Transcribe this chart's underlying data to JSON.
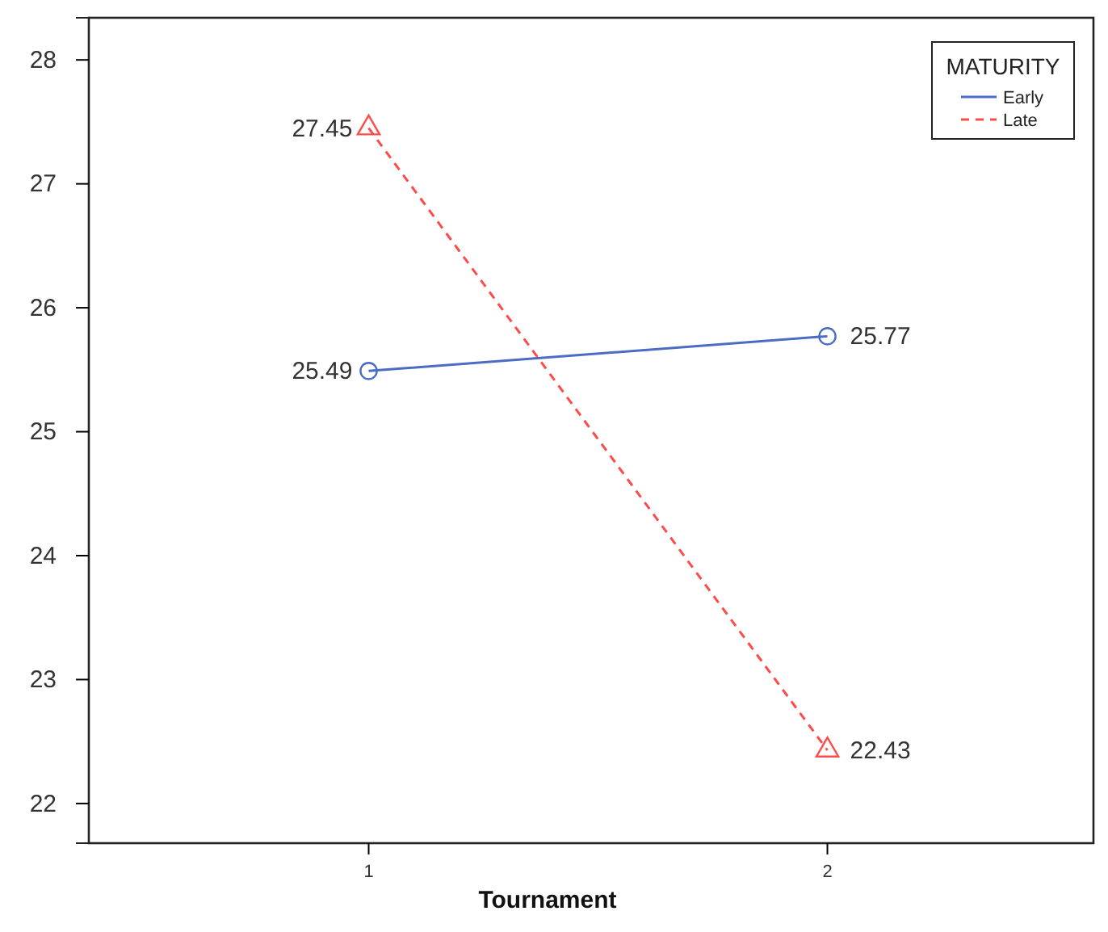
{
  "chart_data": {
    "type": "line",
    "xlabel": "Tournament",
    "x": [
      1,
      2
    ],
    "xlim": [
      0.39,
      2.58
    ],
    "xticks": [
      1,
      2
    ],
    "series": [
      {
        "name": "Early",
        "color": "#4a6cc4",
        "values": [
          25.49,
          25.77
        ],
        "marker": "circle",
        "line_style": "solid"
      },
      {
        "name": "Late",
        "color": "#ff4a4a",
        "values": [
          27.45,
          22.43
        ],
        "marker": "triangle",
        "line_style": "dashed"
      }
    ],
    "ylim": [
      21.68,
      28.34
    ],
    "yticks": [
      22,
      23,
      24,
      25,
      26,
      27,
      28
    ],
    "data_labels": true,
    "legend": "top right",
    "legend_title": "MATURITY",
    "grid": false
  }
}
